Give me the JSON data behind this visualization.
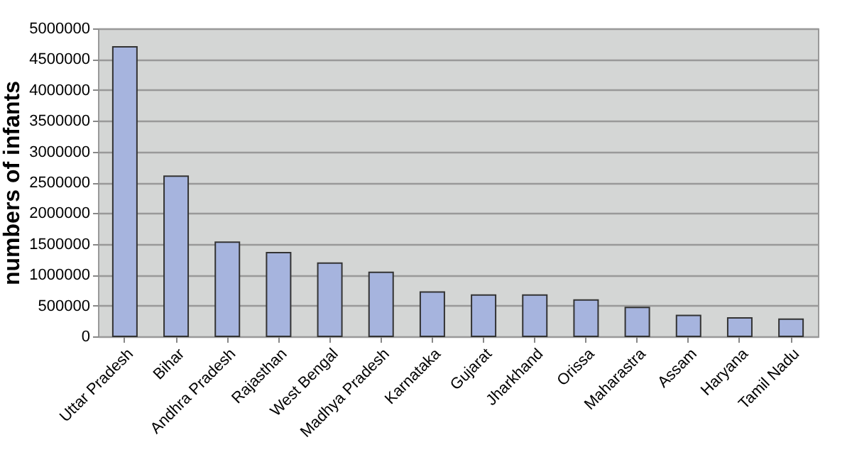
{
  "chart_data": {
    "type": "bar",
    "ylabel": "numbers of infants",
    "categories": [
      "Uttar Pradesh",
      "Bihar",
      "Andhra Pradesh",
      "Rajasthan",
      "West Bengal",
      "Madhya Pradesh",
      "Karnataka",
      "Gujarat",
      "Jharkhand",
      "Orissa",
      "Maharastra",
      "Assam",
      "Haryana",
      "Tamil Nadu"
    ],
    "values": [
      4700000,
      2600000,
      1530000,
      1360000,
      1190000,
      1040000,
      720000,
      670000,
      670000,
      590000,
      470000,
      340000,
      300000,
      280000
    ],
    "color": "#a6b4de",
    "ylim": [
      0,
      5000000
    ],
    "yticks": [
      0,
      500000,
      1000000,
      1500000,
      2000000,
      2500000,
      3000000,
      3500000,
      4000000,
      4500000,
      5000000
    ],
    "grid": "y"
  }
}
